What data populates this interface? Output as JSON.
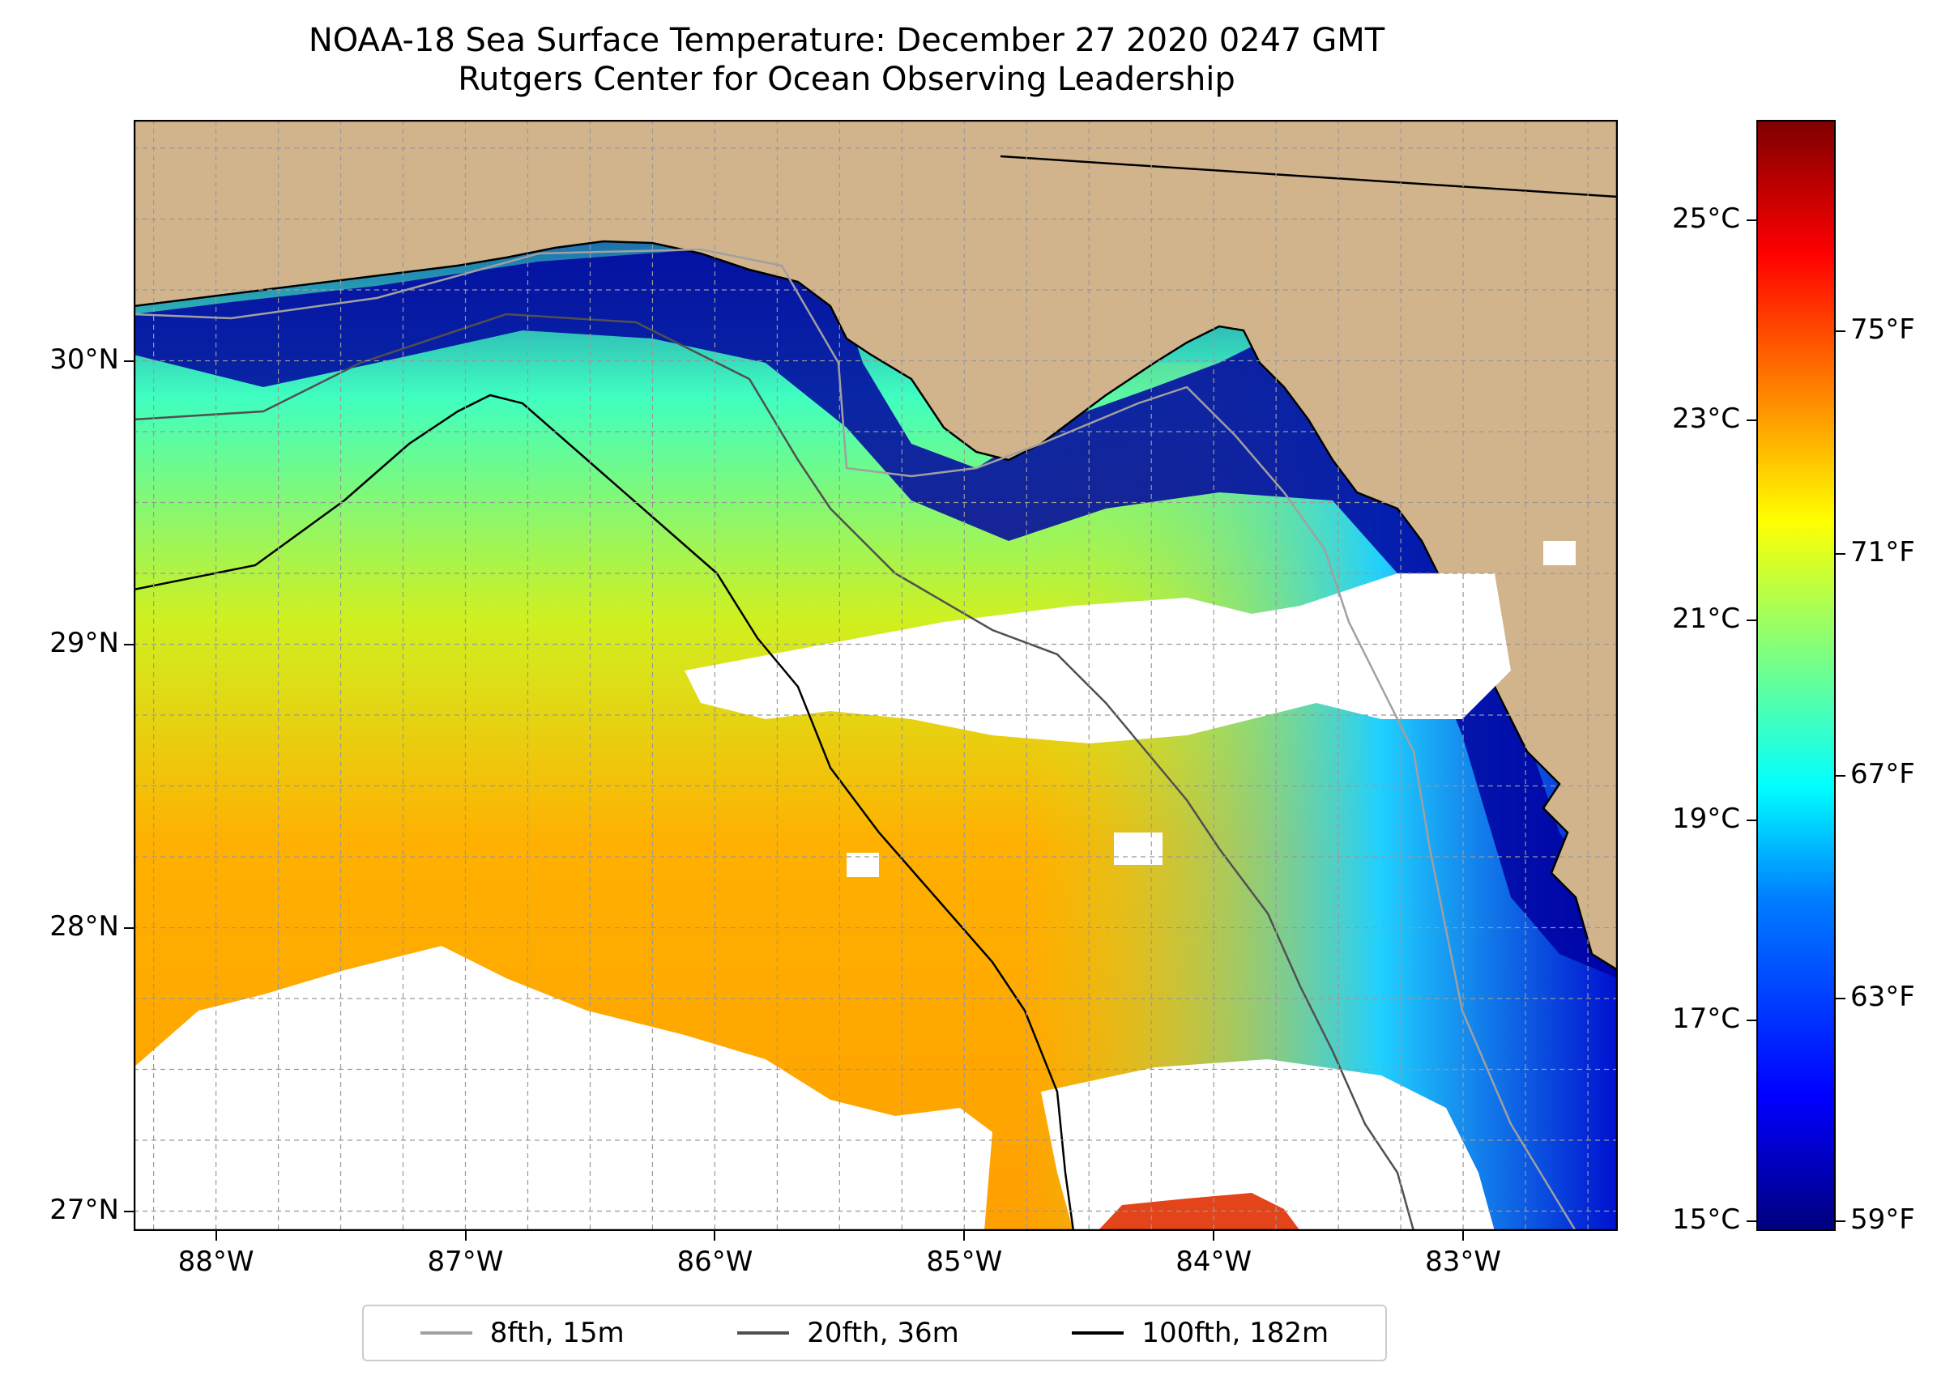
{
  "title": {
    "line1": "NOAA-18 Sea Surface Temperature: December 27 2020 0247 GMT",
    "line2": "Rutgers Center for Ocean Observing Leadership"
  },
  "map": {
    "lon_range": [
      -88.33,
      -82.38
    ],
    "lat_range": [
      26.93,
      30.85
    ],
    "lon_labels": [
      "88°W",
      "87°W",
      "86°W",
      "85°W",
      "84°W",
      "83°W"
    ],
    "lon_values": [
      -88,
      -87,
      -86,
      -85,
      -84,
      -83
    ],
    "lat_labels": [
      "30°N",
      "29°N",
      "28°N",
      "27°N"
    ],
    "lat_values": [
      30,
      29,
      28,
      27
    ],
    "land_color": "#d2b48c",
    "cloud_color": "#ffffff",
    "grid": "dashed"
  },
  "legend": {
    "items": [
      {
        "label": "8fth, 15m",
        "color": "#a0a0a0"
      },
      {
        "label": "20fth, 36m",
        "color": "#505050"
      },
      {
        "label": "100fth, 182m",
        "color": "#000000"
      }
    ]
  },
  "colorbar": {
    "celsius_labels": [
      "25°C",
      "23°C",
      "21°C",
      "19°C",
      "17°C",
      "15°C"
    ],
    "celsius_values": [
      25,
      23,
      21,
      19,
      17,
      15
    ],
    "fahrenheit_labels": [
      "75°F",
      "71°F",
      "67°F",
      "63°F",
      "59°F"
    ],
    "fahrenheit_values": [
      75,
      71,
      67,
      63,
      59
    ],
    "range_celsius": [
      14.9,
      26.0
    ],
    "colormap": "jet"
  }
}
